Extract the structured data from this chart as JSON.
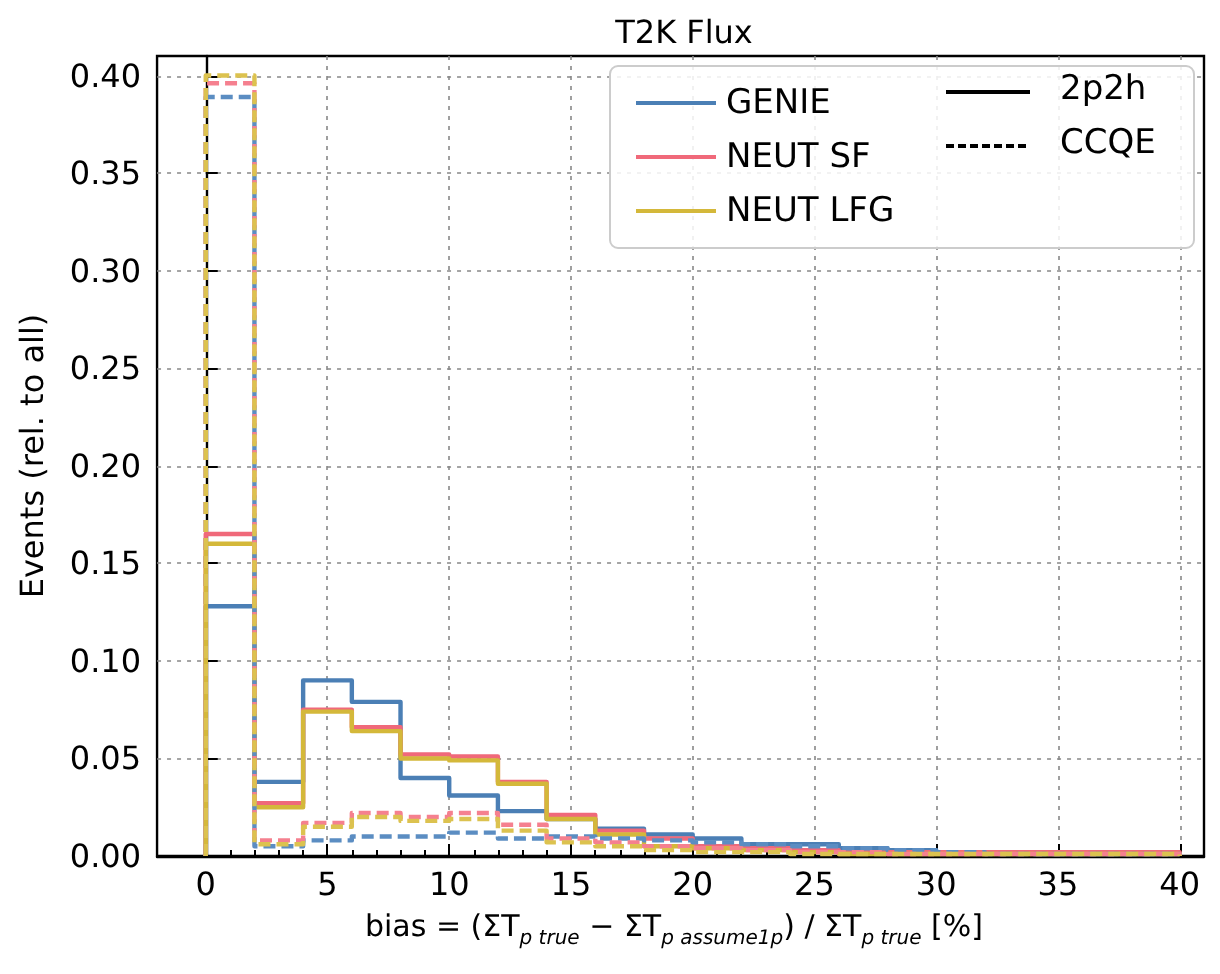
{
  "chart_data": {
    "type": "histogram",
    "title": "T2K Flux",
    "xlabel": "bias = (ΣT$_{p true}$ − ΣT$_{p assume1p}$) / ΣT$_{p true}$ [%]",
    "ylabel": "Events (rel. to all)",
    "bins": [
      0,
      2,
      4,
      6,
      8,
      10,
      12,
      14,
      16,
      18,
      20,
      22,
      24,
      26,
      28,
      30,
      32,
      34,
      36,
      38,
      40
    ],
    "series": [
      {
        "name": "GENIE",
        "color": "#4b7fb5",
        "line_style": "solid",
        "values": [
          0.128,
          0.038,
          0.09,
          0.079,
          0.04,
          0.031,
          0.023,
          0.019,
          0.014,
          0.011,
          0.009,
          0.006,
          0.006,
          0.004,
          0.003,
          0.002,
          0.002,
          0.001,
          0.001,
          0.001
        ]
      },
      {
        "name": "NEUT SF",
        "color": "#f0697a",
        "line_style": "solid",
        "values": [
          0.165,
          0.027,
          0.075,
          0.066,
          0.052,
          0.051,
          0.038,
          0.021,
          0.013,
          0.009,
          0.005,
          0.004,
          0.003,
          0.002,
          0.002,
          0.002,
          0.002,
          0.002,
          0.002,
          0.002
        ]
      },
      {
        "name": "NEUT LFG",
        "color": "#d4b83a",
        "line_style": "solid",
        "values": [
          0.16,
          0.025,
          0.074,
          0.064,
          0.05,
          0.049,
          0.037,
          0.019,
          0.011,
          0.005,
          0.004,
          0.003,
          0.002,
          0.001,
          0.001,
          0.001,
          0.001,
          0.001,
          0.001,
          0.001
        ]
      },
      {
        "color": "#5b8dc2",
        "line_style": "dashed",
        "values": [
          0.389,
          0.005,
          0.008,
          0.01,
          0.01,
          0.012,
          0.009,
          0.01,
          0.009,
          0.008,
          0.007,
          0.006,
          0.005,
          0.004,
          0.003,
          0.002,
          0.001,
          0.001,
          0.001,
          0.001
        ]
      },
      {
        "color": "#f5808f",
        "line_style": "dashed",
        "values": [
          0.396,
          0.008,
          0.017,
          0.022,
          0.02,
          0.022,
          0.016,
          0.009,
          0.007,
          0.005,
          0.004,
          0.003,
          0.002,
          0.002,
          0.001,
          0.001,
          0.001,
          0.001,
          0.001,
          0.001
        ]
      },
      {
        "color": "#dcc24f",
        "line_style": "dashed",
        "values": [
          0.4,
          0.006,
          0.015,
          0.02,
          0.018,
          0.019,
          0.013,
          0.007,
          0.005,
          0.003,
          0.002,
          0.002,
          0.001,
          0.001,
          0.001,
          0.001,
          0.001,
          0.001,
          0.001,
          0.001
        ]
      }
    ],
    "annotations": [
      "2p2h",
      "CCQE"
    ],
    "xlim": [
      -2,
      41
    ],
    "xticks": [
      0,
      {
        "value": 1,
        "label": null
      },
      {
        "value": 2,
        "label": null
      },
      {
        "value": 3,
        "label": null
      },
      {
        "value": 4,
        "label": null
      },
      5,
      {
        "value": 6,
        "label": null
      },
      {
        "value": 7,
        "label": null
      },
      {
        "value": 8,
        "label": null
      },
      {
        "value": 9,
        "label": null
      },
      10,
      {
        "value": 11,
        "label": null
      },
      {
        "value": 12,
        "label": null
      },
      {
        "value": 13,
        "label": null
      },
      {
        "value": 14,
        "label": null
      },
      15,
      {
        "value": 16,
        "label": null
      },
      {
        "value": 17,
        "label": null
      },
      {
        "value": 18,
        "label": null
      },
      {
        "value": 19,
        "label": null
      },
      20,
      {
        "value": 21,
        "label": null
      },
      {
        "value": 22,
        "label": null
      },
      {
        "value": 23,
        "label": null
      },
      {
        "value": 24,
        "label": null
      },
      25,
      {
        "value": 26,
        "label": null
      },
      {
        "value": 27,
        "label": null
      },
      {
        "value": 28,
        "label": null
      },
      {
        "value": 29,
        "label": null
      },
      30,
      {
        "value": 31,
        "label": null
      },
      {
        "value": 32,
        "label": null
      },
      {
        "value": 33,
        "label": null
      },
      {
        "value": 34,
        "label": null
      },
      35,
      {
        "value": 36,
        "label": null
      },
      {
        "value": 37,
        "label": null
      },
      {
        "value": 38,
        "label": null
      },
      {
        "value": 39,
        "label": null
      },
      40
    ],
    "ylim": [
      0,
      0.41
    ],
    "yticks": [
      {
        "value": 0,
        "label": "0.00"
      },
      {
        "value": 0.05,
        "label": "0.05"
      },
      {
        "value": 0.1,
        "label": "0.10"
      },
      {
        "value": 0.15,
        "label": "0.15"
      },
      {
        "value": 0.2,
        "label": "0.20"
      },
      {
        "value": 0.25,
        "label": "0.25"
      },
      {
        "value": 0.3,
        "label": "0.30"
      },
      {
        "value": 0.35,
        "label": "0.35"
      },
      {
        "value": 0.4,
        "label": "0.40"
      }
    ],
    "grid": true,
    "legend": "top right"
  }
}
